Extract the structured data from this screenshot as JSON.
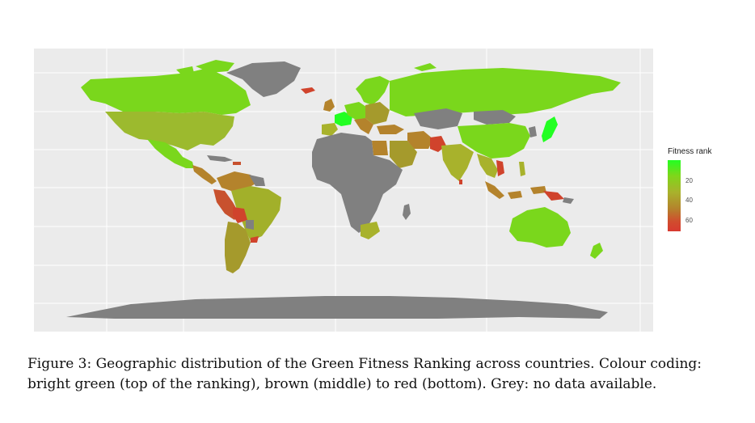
{
  "map": {
    "legend": {
      "title": "Fitness rank",
      "ticks": [
        "20",
        "40",
        "60"
      ],
      "colors": {
        "top": "#22ff22",
        "high": "#7fd61a",
        "middle_high": "#a8b22c",
        "middle": "#b4832c",
        "bottom": "#d83a30",
        "no_data": "#808080"
      }
    },
    "background": "#ebebeb"
  },
  "caption": {
    "line1": "Figure 3: Geographic distribution of the Green Fitness Ranking across countries. Colour coding:",
    "line2": "bright green (top of the ranking), brown (middle) to red (bottom). Grey: no data available."
  }
}
